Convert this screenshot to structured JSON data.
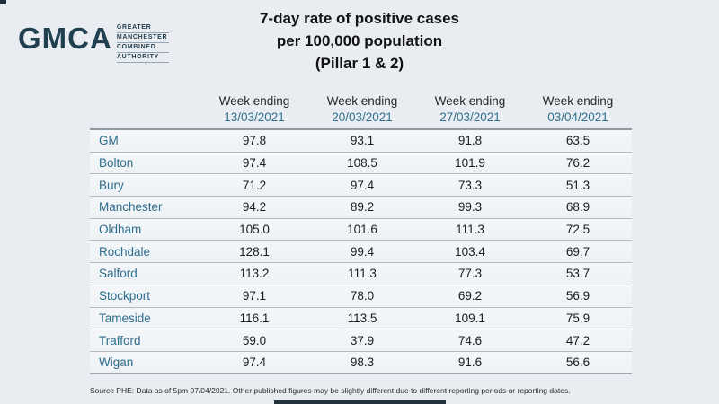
{
  "logo": {
    "acronym": "GMCA",
    "lines": [
      "GREATER",
      "MANCHESTER",
      "COMBINED",
      "AUTHORITY"
    ]
  },
  "title": {
    "lines": [
      "7-day rate of positive cases",
      "per 100,000 population",
      "(Pillar 1 & 2)"
    ]
  },
  "chart_data": {
    "type": "table",
    "title": "7-day rate of positive cases per 100,000 population (Pillar 1 & 2)",
    "column_headers": [
      {
        "label": "Week ending",
        "date": "13/03/2021"
      },
      {
        "label": "Week ending",
        "date": "20/03/2021"
      },
      {
        "label": "Week ending",
        "date": "27/03/2021"
      },
      {
        "label": "Week ending",
        "date": "03/04/2021"
      }
    ],
    "rows": [
      {
        "area": "GM",
        "values": [
          97.8,
          93.1,
          91.8,
          63.5
        ]
      },
      {
        "area": "Bolton",
        "values": [
          97.4,
          108.5,
          101.9,
          76.2
        ]
      },
      {
        "area": "Bury",
        "values": [
          71.2,
          97.4,
          73.3,
          51.3
        ]
      },
      {
        "area": "Manchester",
        "values": [
          94.2,
          89.2,
          99.3,
          68.9
        ]
      },
      {
        "area": "Oldham",
        "values": [
          105.0,
          101.6,
          111.3,
          72.5
        ]
      },
      {
        "area": "Rochdale",
        "values": [
          128.1,
          99.4,
          103.4,
          69.7
        ]
      },
      {
        "area": "Salford",
        "values": [
          113.2,
          111.3,
          77.3,
          53.7
        ]
      },
      {
        "area": "Stockport",
        "values": [
          97.1,
          78.0,
          69.2,
          56.9
        ]
      },
      {
        "area": "Tameside",
        "values": [
          116.1,
          113.5,
          109.1,
          75.9
        ]
      },
      {
        "area": "Trafford",
        "values": [
          59.0,
          37.9,
          74.6,
          47.2
        ]
      },
      {
        "area": "Wigan",
        "values": [
          97.4,
          98.3,
          91.6,
          56.6
        ]
      }
    ]
  },
  "footer": {
    "source_note": "Source PHE: Data as of 5pm 07/04/2021. Other published figures may be slightly different due to different reporting periods or reporting dates."
  },
  "colors": {
    "background": "#e9edf1",
    "accent_teal": "#2e6d8e",
    "date_teal": "#31708f",
    "logo_navy": "#21404f",
    "text": "#1c1c1c",
    "row_background": "#f1f5f7",
    "row_separator": "#b4bcc3",
    "header_rule": "#8c9aa3",
    "bottom_bar": "#22333d"
  }
}
